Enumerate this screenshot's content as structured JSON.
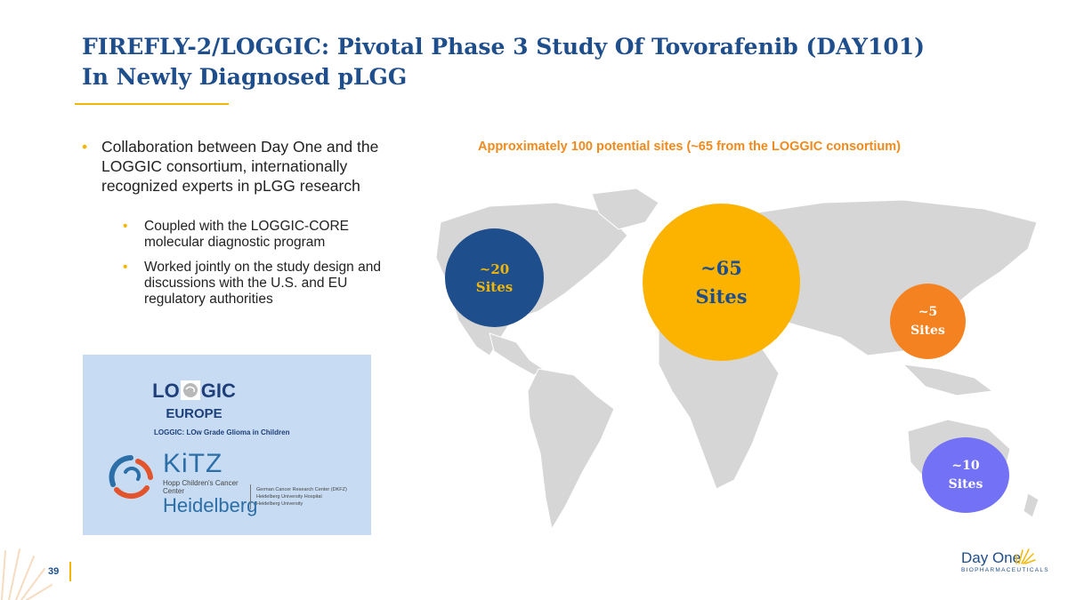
{
  "title": {
    "line1": "FIREFLY-2/LOGGIC: Pivotal Phase 3 Study Of Tovorafenib (DAY101)",
    "line2": "In Newly Diagnosed pLGG"
  },
  "bullets": {
    "main": "Collaboration between Day One and the LOGGIC consortium, internationally recognized experts in pLGG research",
    "sub": [
      "Coupled with the LOGGIC-CORE molecular diagnostic program",
      "Worked jointly on the study design and discussions with the U.S. and EU regulatory authorities"
    ]
  },
  "logos": {
    "loggic_left": "LO",
    "loggic_right": "GIC",
    "loggic_region": "EUROPE",
    "loggic_tagline": "LOGGIC: LOw Grade Glioma in Children",
    "kitz_name": "KiTZ",
    "kitz_center": "Hopp Children's Cancer Center",
    "kitz_city": "Heidelberg",
    "kitz_institutions": [
      "German Cancer Research Center (DKFZ)",
      "Heidelberg University Hospital",
      "Heidelberg University"
    ]
  },
  "map": {
    "caption": "Approximately 100 potential sites (~65 from the LOGGIC consortium)",
    "regions": [
      {
        "count": "~20",
        "unit": "Sites",
        "color": "#1f4e8c"
      },
      {
        "count": "~65",
        "unit": "Sites",
        "color": "#fbb300"
      },
      {
        "count": "~5",
        "unit": "Sites",
        "color": "#f58220"
      },
      {
        "count": "~10",
        "unit": "Sites",
        "color": "#7371f5"
      }
    ]
  },
  "footer": {
    "page_number": "39",
    "brand_name": "Day One",
    "brand_sub": "BIOPHARMACEUTICALS"
  },
  "colors": {
    "title": "#1f4e8c",
    "accent": "#f2b705",
    "caption": "#f08a1c"
  }
}
